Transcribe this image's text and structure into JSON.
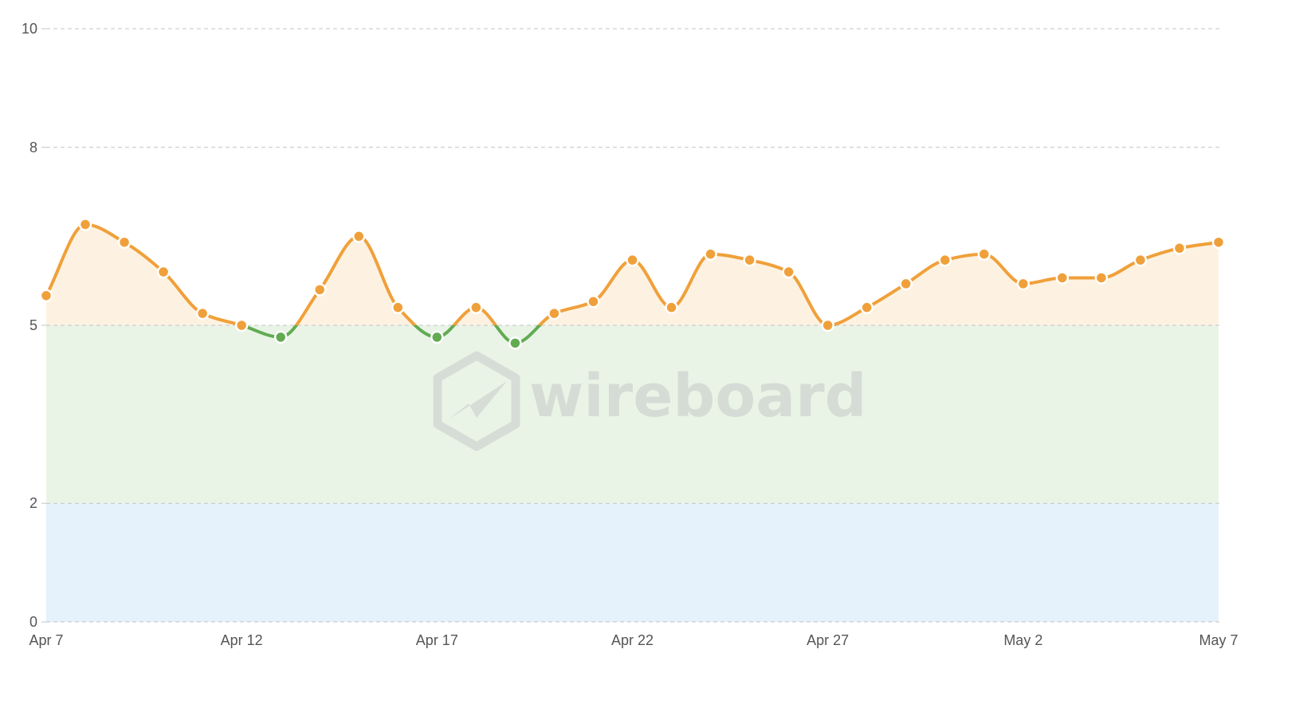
{
  "watermark": {
    "text": "wireboard"
  },
  "colors": {
    "line_above": "#f0a03a",
    "line_below": "#62ab52",
    "band_above": "#fdf2e2",
    "band_middle": "#e9f4e7",
    "band_low": "#e5f1fb",
    "grid": "#c4c4c4",
    "tick_text": "#555555"
  },
  "chart_data": {
    "type": "line",
    "title": "",
    "xlabel": "",
    "ylabel": "",
    "curve": "smooth",
    "markers": true,
    "ylim": [
      0,
      10
    ],
    "y_ticks": [
      0,
      2,
      5,
      8,
      10
    ],
    "threshold": 5,
    "bands": [
      {
        "from": 0,
        "to": 2,
        "color": "#e5f1fb"
      },
      {
        "from": 2,
        "to": 5,
        "color": "#e9f4e7"
      },
      {
        "from": 5,
        "to": "line",
        "color": "#fdf2e2"
      }
    ],
    "x_start": "Apr 7",
    "x_end": "May 7",
    "x_tick_labels": [
      {
        "label": "Apr 7",
        "day_index": 0
      },
      {
        "label": "Apr 12",
        "day_index": 5
      },
      {
        "label": "Apr 17",
        "day_index": 10
      },
      {
        "label": "Apr 22",
        "day_index": 15
      },
      {
        "label": "Apr 27",
        "day_index": 20
      },
      {
        "label": "May 2",
        "day_index": 25
      },
      {
        "label": "May 7",
        "day_index": 30
      }
    ],
    "series": [
      {
        "x": [
          "Apr 7",
          "Apr 8",
          "Apr 9",
          "Apr 10",
          "Apr 11",
          "Apr 12",
          "Apr 13",
          "Apr 14",
          "Apr 15",
          "Apr 16",
          "Apr 17",
          "Apr 18",
          "Apr 19",
          "Apr 20",
          "Apr 21",
          "Apr 22",
          "Apr 23",
          "Apr 24",
          "Apr 25",
          "Apr 26",
          "Apr 27",
          "Apr 28",
          "Apr 29",
          "Apr 30",
          "May 1",
          "May 2",
          "May 3",
          "May 4",
          "May 5",
          "May 6",
          "May 7"
        ],
        "values": [
          5.5,
          6.7,
          6.4,
          5.9,
          5.2,
          5.0,
          4.8,
          5.6,
          6.5,
          5.3,
          4.8,
          5.3,
          4.7,
          5.2,
          5.4,
          6.1,
          5.3,
          6.2,
          6.1,
          5.9,
          5.0,
          5.3,
          5.7,
          6.1,
          6.2,
          5.7,
          5.8,
          5.8,
          6.1,
          6.3,
          6.4
        ]
      }
    ]
  }
}
